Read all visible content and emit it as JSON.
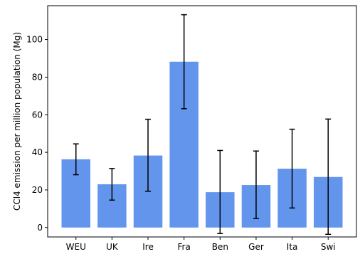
{
  "chart_data": {
    "type": "bar",
    "title": "",
    "xlabel": "",
    "ylabel": "CCl4 emission per million population (Mg)",
    "categories": [
      "WEU",
      "UK",
      "Ire",
      "Fra",
      "Ben",
      "Ger",
      "Ita",
      "Swi"
    ],
    "values": [
      36.3,
      23.0,
      38.3,
      88.2,
      18.8,
      22.6,
      31.3,
      26.9
    ],
    "error_bars": [
      [
        28.1,
        44.5
      ],
      [
        14.6,
        31.4
      ],
      [
        19.3,
        57.6
      ],
      [
        63.2,
        113.2
      ],
      [
        -3.2,
        41.0
      ],
      [
        4.8,
        40.7
      ],
      [
        10.4,
        52.3
      ],
      [
        -3.6,
        57.7
      ]
    ],
    "yticks": [
      0,
      20,
      40,
      60,
      80,
      100
    ],
    "ylim": [
      -5,
      118
    ],
    "grid": false,
    "legend": "none",
    "colors": {
      "bar": "#6495ED",
      "error": "#000000",
      "axis": "#000000"
    }
  }
}
